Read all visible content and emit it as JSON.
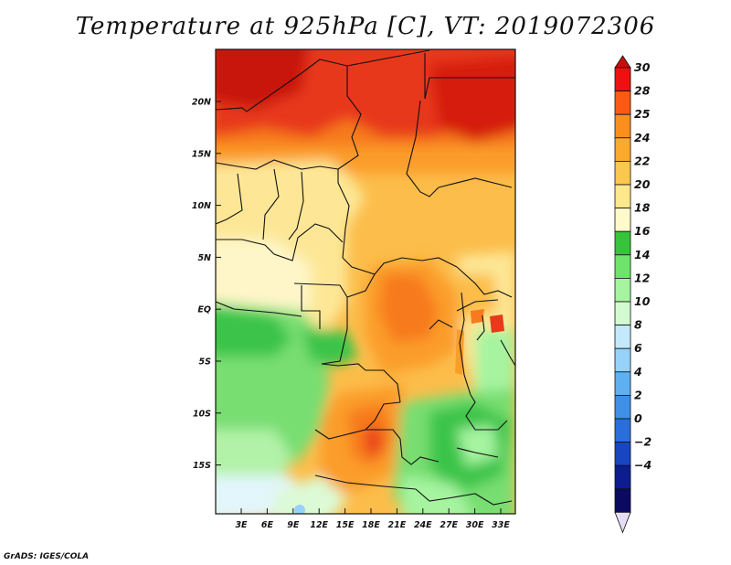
{
  "title": "Temperature at 925hPa [C], VT: 2019072306",
  "credit": "GrADS: IGES/COLA",
  "map": {
    "lat_labels": [
      "20N",
      "15N",
      "10N",
      "5N",
      "EQ",
      "5S",
      "10S",
      "15S"
    ],
    "lon_labels": [
      "3E",
      "6E",
      "9E",
      "12E",
      "15E",
      "18E",
      "21E",
      "24E",
      "27E",
      "30E",
      "33E"
    ]
  },
  "colorbar": {
    "labels": [
      "30",
      "28",
      "25",
      "24",
      "22",
      "20",
      "18",
      "16",
      "14",
      "12",
      "10",
      "8",
      "6",
      "4",
      "2",
      "0",
      "−2",
      "−4"
    ],
    "colors": [
      "#ee1111",
      "#fa5a14",
      "#fa8f1e",
      "#fbaa2d",
      "#fcc74f",
      "#fde88c",
      "#fffacb",
      "#37c33a",
      "#6fe46c",
      "#a6f4a0",
      "#d3fad0",
      "#c4e9fb",
      "#96d2fa",
      "#5fb0f0",
      "#3f8fe6",
      "#2a6ed9",
      "#1746c0",
      "#0d1c8f",
      "#0a0a60"
    ],
    "top_color": "#cc0b0b",
    "bottom_color": "#e5dcf5"
  },
  "colors": {
    "hot_dark": "#c8160d",
    "hot": "#e8391a",
    "warm_orange": "#f77a1f",
    "orange": "#fb9d2a",
    "light_orange": "#fcbd4a",
    "yellow": "#fde796",
    "pale_yellow": "#fef6c8",
    "green": "#3ac44a",
    "mid_green": "#78de72",
    "light_green": "#b2f2a8",
    "pale_green": "#dcfad6",
    "pale_blue": "#e2f6fb",
    "border": "#111111"
  }
}
